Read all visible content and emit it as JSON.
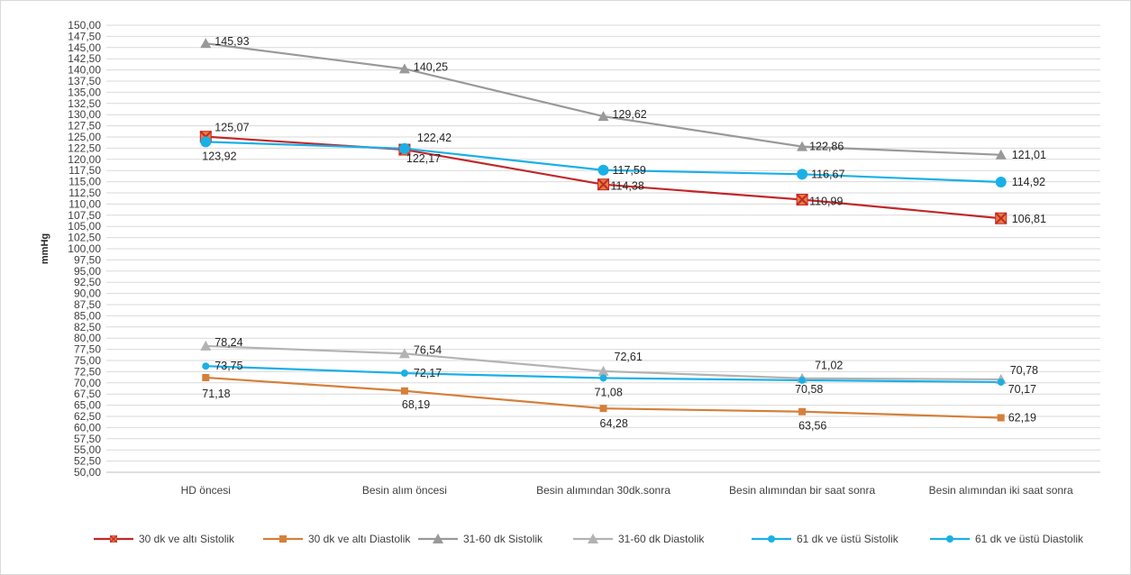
{
  "chart_data": {
    "type": "line",
    "title": "",
    "xlabel": "",
    "ylabel": "mmHg",
    "ylim": [
      50,
      150
    ],
    "ystep": 2.5,
    "grid": true,
    "legend_position": "bottom",
    "categories": [
      "HD öncesi",
      "Besin alım öncesi",
      "Besin alımından 30dk.sonra",
      "Besin alımından bir saat sonra",
      "Besin alımından iki saat sonra"
    ],
    "y_tick_labels": [
      "50,00",
      "52,50",
      "55,00",
      "57,50",
      "60,00",
      "62,50",
      "65,00",
      "67,50",
      "70,00",
      "72,50",
      "75,00",
      "77,50",
      "80,00",
      "82,50",
      "85,00",
      "87,50",
      "90,00",
      "92,50",
      "95,00",
      "97,50",
      "100,00",
      "102,50",
      "105,00",
      "107,50",
      "110,00",
      "112,50",
      "115,00",
      "117,50",
      "120,00",
      "122,50",
      "125,00",
      "127,50",
      "130,00",
      "132,50",
      "135,00",
      "137,50",
      "140,00",
      "142,50",
      "145,00",
      "147,50",
      "150,00"
    ],
    "series": [
      {
        "name": "30 dk ve altı Sistolik",
        "color": "#c0282b",
        "marker": "box-x",
        "values": [
          125.07,
          122.17,
          114.38,
          110.99,
          106.81
        ],
        "labels": [
          "125,07",
          "122,17",
          "114,38",
          "110,99",
          "106,81"
        ]
      },
      {
        "name": "30 dk ve altı Diastolik",
        "color": "#d4803a",
        "marker": "square",
        "values": [
          71.18,
          68.19,
          64.28,
          63.56,
          62.19
        ],
        "labels": [
          "71,18",
          "68,19",
          "64,28",
          "63,56",
          "62,19"
        ]
      },
      {
        "name": "31-60 dk Sistolik",
        "color": "#999999",
        "marker": "triangle",
        "values": [
          145.93,
          140.25,
          129.62,
          122.86,
          121.01
        ],
        "labels": [
          "145,93",
          "140,25",
          "129,62",
          "122,86",
          "121,01"
        ]
      },
      {
        "name": "31-60 dk Diastolik",
        "color": "#b3b3b3",
        "marker": "triangle",
        "values": [
          78.24,
          76.54,
          72.61,
          71.02,
          70.78
        ],
        "labels": [
          "78,24",
          "76,54",
          "72,61",
          "71,02",
          "70,78"
        ]
      },
      {
        "name": "61 dk ve üstü Sistolik",
        "color": "#1ab0e6",
        "marker": "circle-lg",
        "values": [
          123.92,
          122.42,
          117.59,
          116.67,
          114.92
        ],
        "labels": [
          "123,92",
          "122,42",
          "117,59",
          "116,67",
          "114,92"
        ]
      },
      {
        "name": "61 dk ve üstü Diastolik",
        "color": "#1ab0e6",
        "marker": "circle",
        "values": [
          73.75,
          72.17,
          71.08,
          70.58,
          70.17
        ],
        "labels": [
          "73,75",
          "72,17",
          "71,08",
          "70,58",
          "70,17"
        ]
      }
    ]
  }
}
